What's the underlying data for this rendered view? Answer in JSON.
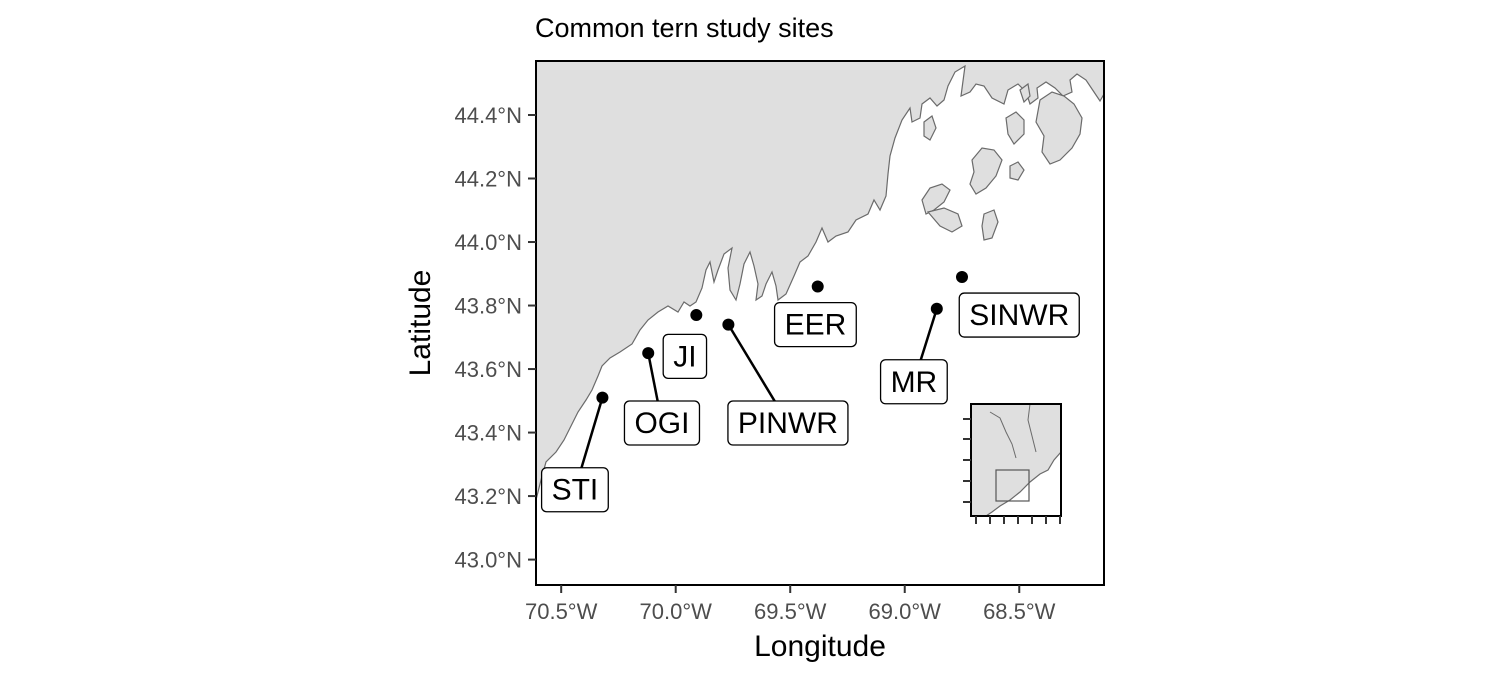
{
  "chart_data": {
    "type": "map",
    "title": "Common tern study sites",
    "xlabel": "Longitude",
    "ylabel": "Latitude",
    "xlim": [
      -70.61,
      -68.13
    ],
    "ylim": [
      42.92,
      44.57
    ],
    "x_ticks": [
      {
        "value": -70.5,
        "label": "70.5°W"
      },
      {
        "value": -70.0,
        "label": "70.0°W"
      },
      {
        "value": -69.5,
        "label": "69.5°W"
      },
      {
        "value": -69.0,
        "label": "69.0°W"
      },
      {
        "value": -68.5,
        "label": "68.5°W"
      }
    ],
    "y_ticks": [
      {
        "value": 44.4,
        "label": "44.4°N"
      },
      {
        "value": 44.2,
        "label": "44.2°N"
      },
      {
        "value": 44.0,
        "label": "44.0°N"
      },
      {
        "value": 43.8,
        "label": "43.8°N"
      },
      {
        "value": 43.6,
        "label": "43.6°N"
      },
      {
        "value": 43.4,
        "label": "43.4°N"
      },
      {
        "value": 43.2,
        "label": "43.2°N"
      },
      {
        "value": 43.0,
        "label": "43.0°N"
      }
    ],
    "sites": [
      {
        "name": "STI",
        "lon": -70.32,
        "lat": 43.51,
        "label_lon": -70.44,
        "label_lat": 43.22,
        "leader": true
      },
      {
        "name": "OGI",
        "lon": -70.12,
        "lat": 43.65,
        "label_lon": -70.06,
        "label_lat": 43.43,
        "leader": true
      },
      {
        "name": "JI",
        "lon": -69.91,
        "lat": 43.77,
        "label_lon": -69.96,
        "label_lat": 43.64,
        "leader": false
      },
      {
        "name": "PINWR",
        "lon": -69.77,
        "lat": 43.74,
        "label_lon": -69.51,
        "label_lat": 43.43,
        "leader": true
      },
      {
        "name": "EER",
        "lon": -69.38,
        "lat": 43.86,
        "label_lon": -69.39,
        "label_lat": 43.74,
        "leader": false
      },
      {
        "name": "MR",
        "lon": -68.86,
        "lat": 43.79,
        "label_lon": -68.96,
        "label_lat": 43.56,
        "leader": true
      },
      {
        "name": "SINWR",
        "lon": -68.75,
        "lat": 43.89,
        "label_lon": -68.5,
        "label_lat": 43.77,
        "leader": false
      }
    ],
    "inset_locator": {
      "position": "bottom-right"
    },
    "grid": false,
    "colors": {
      "land": "#dfdfdf",
      "coast": "#6b6b6b",
      "points": "#000000",
      "background": "#ffffff"
    }
  }
}
